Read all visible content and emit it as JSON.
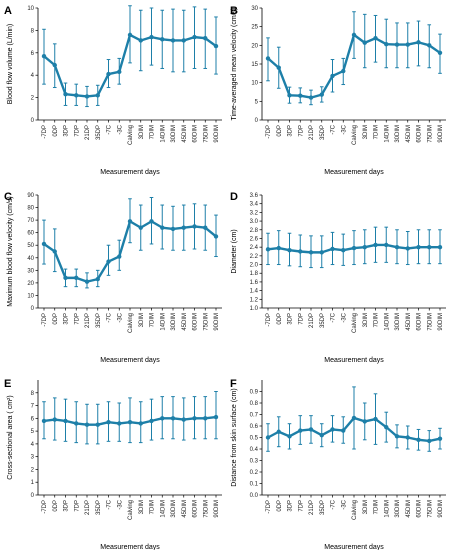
{
  "figure": {
    "line_color": "#1d7fa8",
    "axis_color": "#000000"
  },
  "chart_data": [
    {
      "panel": "A",
      "type": "line",
      "title": "",
      "xlabel": "Measurement days",
      "ylabel": "Blood flow volume (L/min)",
      "ylim": [
        0,
        10
      ],
      "yticks": [
        0,
        2,
        4,
        6,
        8,
        10
      ],
      "categories": [
        "-7DP",
        "0DP",
        "3DP",
        "7DP",
        "21DP",
        "35DP",
        "-7C",
        "-3C",
        "Calving",
        "3DIM",
        "7DIM",
        "14DIM",
        "30DIM",
        "45DIM",
        "60DIM",
        "75DIM",
        "90DIM"
      ],
      "values": [
        5.7,
        4.9,
        2.3,
        2.2,
        2.1,
        2.2,
        4.1,
        4.3,
        7.6,
        7.1,
        7.4,
        7.2,
        7.1,
        7.1,
        7.4,
        7.3,
        6.6
      ],
      "err_low": [
        3.2,
        2.9,
        1.3,
        1.3,
        1.2,
        1.3,
        2.9,
        3.2,
        5.1,
        4.4,
        4.9,
        4.6,
        4.3,
        4.3,
        4.6,
        4.6,
        4.1
      ],
      "err_high": [
        8.1,
        6.8,
        3.3,
        3.2,
        3.0,
        3.1,
        5.4,
        5.5,
        10.2,
        9.8,
        10.0,
        9.8,
        9.9,
        9.8,
        10.1,
        9.9,
        9.2
      ],
      "grid": false
    },
    {
      "panel": "B",
      "type": "line",
      "title": "",
      "xlabel": "Measurement days",
      "ylabel": "Time-averaged mean velocity (cm/s)",
      "ylim": [
        0,
        30
      ],
      "yticks": [
        0,
        5,
        10,
        15,
        20,
        25,
        30
      ],
      "categories": [
        "-7DP",
        "0DP",
        "3DP",
        "7DP",
        "21DP",
        "35DP",
        "-7C",
        "-3C",
        "Calving",
        "3DIM",
        "7DIM",
        "14DIM",
        "30DIM",
        "45DIM",
        "60DIM",
        "75DIM",
        "90DIM"
      ],
      "values": [
        16.5,
        14.0,
        6.6,
        6.5,
        6.0,
        6.8,
        11.8,
        13.1,
        22.8,
        20.7,
        21.9,
        20.3,
        20.2,
        20.2,
        20.8,
        20.0,
        18.0
      ],
      "err_low": [
        10.5,
        8.5,
        4.5,
        4.6,
        4.1,
        4.8,
        7.5,
        9.5,
        16.5,
        14.0,
        15.5,
        14.0,
        14.0,
        14.0,
        14.5,
        14.0,
        12.5
      ],
      "err_high": [
        22.0,
        19.5,
        8.8,
        8.6,
        8.0,
        8.9,
        16.2,
        16.5,
        29.0,
        28.3,
        28.0,
        27.0,
        26.0,
        26.0,
        26.5,
        25.5,
        23.0
      ],
      "grid": false
    },
    {
      "panel": "C",
      "type": "line",
      "title": "",
      "xlabel": "Measurement days",
      "ylabel": "Maximum blood flow velocity (cm/s)",
      "ylim": [
        0,
        90
      ],
      "yticks": [
        0,
        10,
        20,
        30,
        40,
        50,
        60,
        70,
        80,
        90
      ],
      "categories": [
        "-7DP",
        "0DP",
        "3DP",
        "7DP",
        "21DP",
        "35DP",
        "-7C",
        "-3C",
        "Calving",
        "3DIM",
        "7DIM",
        "14DIM",
        "30DIM",
        "45DIM",
        "60DIM",
        "75DIM",
        "90DIM"
      ],
      "values": [
        51,
        45,
        24,
        24,
        21,
        23,
        37,
        41,
        69,
        64,
        69,
        64,
        63,
        64,
        65,
        64,
        57
      ],
      "err_low": [
        35,
        29,
        17,
        17,
        16,
        17,
        26,
        30,
        52,
        46,
        51,
        47,
        46,
        46,
        47,
        46,
        41
      ],
      "err_high": [
        70,
        63,
        31,
        31,
        28,
        30,
        50,
        54,
        87,
        82,
        88,
        82,
        81,
        82,
        83,
        82,
        74
      ],
      "grid": false
    },
    {
      "panel": "D",
      "type": "line",
      "title": "",
      "xlabel": "Measurement days",
      "ylabel": "Diameter (cm)",
      "ylim": [
        1.0,
        3.6
      ],
      "yticks": [
        1.0,
        1.2,
        1.4,
        1.6,
        1.8,
        2.0,
        2.2,
        2.4,
        2.6,
        2.8,
        3.0,
        3.2,
        3.4,
        3.6
      ],
      "categories": [
        "-7DP",
        "0DP",
        "3DP",
        "7DP",
        "21DP",
        "35DP",
        "-7C",
        "-3C",
        "Calving",
        "3DIM",
        "7DIM",
        "14DIM",
        "30DIM",
        "45DIM",
        "60DIM",
        "75DIM",
        "90DIM"
      ],
      "values": [
        2.35,
        2.38,
        2.33,
        2.3,
        2.28,
        2.28,
        2.36,
        2.33,
        2.38,
        2.4,
        2.45,
        2.45,
        2.4,
        2.37,
        2.4,
        2.4,
        2.4
      ],
      "err_low": [
        2.0,
        2.0,
        1.97,
        1.95,
        1.93,
        1.93,
        2.0,
        1.98,
        2.0,
        2.02,
        2.05,
        2.05,
        2.02,
        2.0,
        2.02,
        2.02,
        2.02
      ],
      "err_high": [
        2.72,
        2.78,
        2.72,
        2.68,
        2.66,
        2.66,
        2.74,
        2.7,
        2.78,
        2.8,
        2.86,
        2.86,
        2.8,
        2.76,
        2.8,
        2.8,
        2.8
      ],
      "grid": false
    },
    {
      "panel": "E",
      "type": "line",
      "title": "",
      "xlabel": "Measurement days",
      "ylabel": "Cross-sectional area ( cm²)",
      "ylim": [
        0,
        9
      ],
      "yticks": [
        0,
        1,
        2,
        3,
        4,
        5,
        6,
        7,
        8
      ],
      "categories": [
        "-7DP",
        "0DP",
        "3DP",
        "7DP",
        "21DP",
        "35DP",
        "-7C",
        "-3C",
        "Calving",
        "3DIM",
        "7DIM",
        "14DIM",
        "30DIM",
        "45DIM",
        "60DIM",
        "75DIM",
        "90DIM"
      ],
      "values": [
        5.8,
        5.9,
        5.8,
        5.6,
        5.5,
        5.5,
        5.7,
        5.6,
        5.7,
        5.6,
        5.8,
        6.0,
        6.0,
        5.9,
        6.0,
        6.0,
        6.1
      ],
      "err_low": [
        4.4,
        4.3,
        4.2,
        4.1,
        4.0,
        4.0,
        4.2,
        4.2,
        4.1,
        4.1,
        4.3,
        4.4,
        4.4,
        4.3,
        4.4,
        4.4,
        4.4
      ],
      "err_high": [
        7.3,
        7.6,
        7.5,
        7.3,
        7.1,
        7.1,
        7.3,
        7.2,
        7.6,
        7.3,
        7.5,
        7.7,
        7.7,
        7.6,
        7.7,
        7.7,
        8.1
      ],
      "grid": false
    },
    {
      "panel": "F",
      "type": "line",
      "title": "",
      "xlabel": "Measurement days",
      "ylabel": "Distance from skin surface (cm)",
      "ylim": [
        0,
        1.0
      ],
      "yticks": [
        0,
        0.1,
        0.2,
        0.3,
        0.4,
        0.5,
        0.6,
        0.7,
        0.8,
        0.9
      ],
      "categories": [
        "-7DP",
        "0DP",
        "3DP",
        "7DP",
        "21DP",
        "35DP",
        "-7C",
        "-3C",
        "Calving",
        "3DIM",
        "7DIM",
        "14DIM",
        "30DIM",
        "45DIM",
        "60DIM",
        "75DIM",
        "90DIM"
      ],
      "values": [
        0.5,
        0.55,
        0.51,
        0.56,
        0.57,
        0.52,
        0.57,
        0.56,
        0.67,
        0.64,
        0.66,
        0.59,
        0.51,
        0.5,
        0.48,
        0.47,
        0.49
      ],
      "err_low": [
        0.38,
        0.42,
        0.4,
        0.44,
        0.45,
        0.42,
        0.46,
        0.45,
        0.4,
        0.48,
        0.44,
        0.46,
        0.41,
        0.4,
        0.39,
        0.38,
        0.4
      ],
      "err_high": [
        0.62,
        0.68,
        0.62,
        0.69,
        0.69,
        0.62,
        0.69,
        0.68,
        0.94,
        0.8,
        0.88,
        0.72,
        0.61,
        0.6,
        0.57,
        0.56,
        0.58
      ],
      "grid": false
    }
  ]
}
